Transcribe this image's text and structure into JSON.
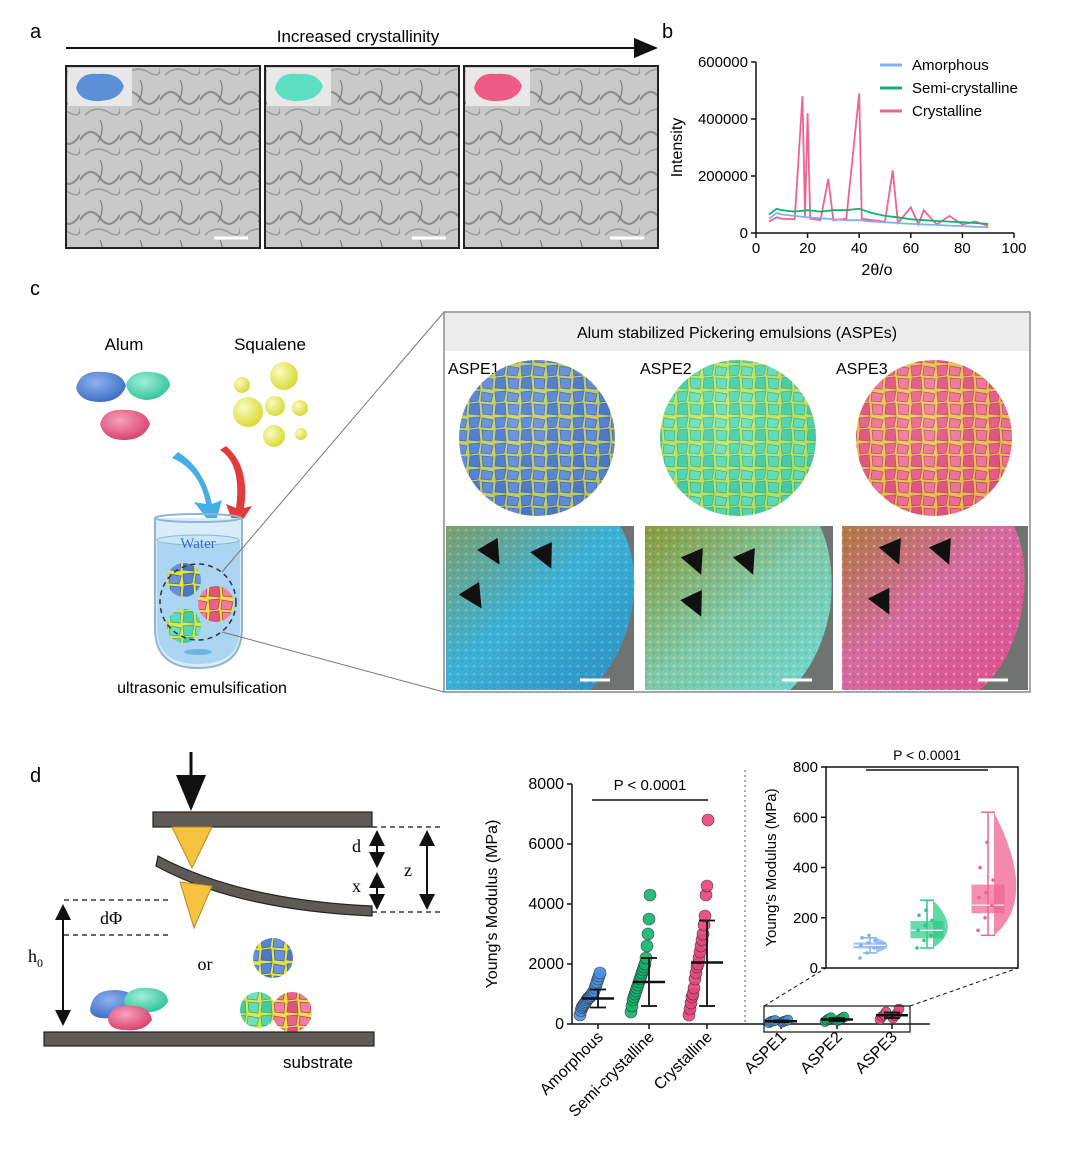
{
  "panel_labels": {
    "a": "a",
    "b": "b",
    "c": "c",
    "d": "d"
  },
  "panel_a": {
    "arrow_label": "Increased crystallinity",
    "images": [
      {
        "name": "amorphous",
        "color": "#5b8fd6"
      },
      {
        "name": "semi-crystalline",
        "color": "#5ee0c0"
      },
      {
        "name": "crystalline",
        "color": "#ee5c86"
      }
    ]
  },
  "panel_c": {
    "alum_label": "Alum",
    "squalene_label": "Squalene",
    "water_label": "Water",
    "process_label": "ultrasonic emulsification",
    "box_title": "Alum stabilized Pickering emulsions (ASPEs)",
    "aspes": [
      {
        "label": "ASPE1",
        "color": "#5b84d0"
      },
      {
        "label": "ASPE2",
        "color": "#55d6b0"
      },
      {
        "label": "ASPE3",
        "color": "#e8628a"
      }
    ]
  },
  "panel_d_schematic": {
    "d_label": "d",
    "x_label": "x",
    "z_label": "z",
    "dphi_label": "dΦ",
    "h0_label": "h",
    "h0_sub": "0",
    "or_label": "or",
    "substrate_label": "substrate"
  },
  "colors": {
    "amorphous": "#4a90e2",
    "semi": "#12b36e",
    "crystalline": "#e8437a",
    "amorphous_light": "#7fb2f0",
    "semi_light": "#2ec98a",
    "crystalline_light": "#f06292"
  },
  "chart_data": [
    {
      "type": "line",
      "panel": "b",
      "xlabel": "2θ/o",
      "ylabel": "Intensity",
      "xlim": [
        0,
        100
      ],
      "ylim": [
        0,
        600000
      ],
      "xticks": [
        "0",
        "20",
        "40",
        "60",
        "80",
        "100"
      ],
      "yticks": [
        "0",
        "200000",
        "400000",
        "600000"
      ],
      "legend": [
        "Amorphous",
        "Semi-crystalline",
        "Crystalline"
      ],
      "series": [
        {
          "name": "Amorphous",
          "x": [
            5,
            8,
            10,
            15,
            20,
            25,
            30,
            35,
            40,
            45,
            50,
            55,
            60,
            65,
            70,
            75,
            80,
            85,
            90
          ],
          "y": [
            50000,
            70000,
            65000,
            60000,
            55000,
            52000,
            48000,
            45000,
            45000,
            40000,
            38000,
            35000,
            32000,
            30000,
            28000,
            26000,
            24000,
            22000,
            20000
          ]
        },
        {
          "name": "Semi-crystalline",
          "x": [
            5,
            8,
            10,
            15,
            20,
            25,
            30,
            35,
            40,
            45,
            50,
            55,
            60,
            65,
            70,
            75,
            80,
            85,
            90
          ],
          "y": [
            65000,
            85000,
            80000,
            75000,
            80000,
            75000,
            80000,
            80000,
            85000,
            70000,
            60000,
            55000,
            48000,
            45000,
            42000,
            40000,
            38000,
            35000,
            32000
          ]
        },
        {
          "name": "Crystalline",
          "x": [
            5,
            8,
            10,
            15,
            18,
            19,
            20,
            21,
            25,
            28,
            30,
            35,
            40,
            41,
            45,
            50,
            53,
            55,
            60,
            63,
            65,
            70,
            75,
            80,
            85,
            90
          ],
          "y": [
            40000,
            55000,
            50000,
            48000,
            480000,
            60000,
            420000,
            50000,
            45000,
            190000,
            45000,
            50000,
            490000,
            50000,
            45000,
            40000,
            220000,
            35000,
            90000,
            30000,
            80000,
            30000,
            60000,
            30000,
            40000,
            25000
          ]
        }
      ]
    },
    {
      "type": "scatter",
      "panel": "d-main",
      "ylabel": "Young's Modulus (MPa)",
      "ylim": [
        0,
        8000
      ],
      "yticks": [
        "0",
        "2000",
        "4000",
        "6000",
        "8000"
      ],
      "categories": [
        "Amorphous",
        "Semi-crystalline",
        "Crystalline",
        "ASPE1",
        "ASPE2",
        "ASPE3"
      ],
      "annotation": "P < 0.0001",
      "mean": [
        850,
        1400,
        2050,
        90,
        150,
        290
      ],
      "sd_low": [
        550,
        600,
        600,
        60,
        100,
        200
      ],
      "sd_high": [
        1150,
        2200,
        3450,
        120,
        200,
        380
      ],
      "points": [
        [
          300,
          450,
          550,
          600,
          650,
          700,
          750,
          800,
          850,
          880,
          900,
          950,
          1000,
          1050,
          1100,
          1200,
          1300,
          1400,
          1500,
          1600,
          1700
        ],
        [
          400,
          600,
          800,
          900,
          1000,
          1100,
          1200,
          1300,
          1400,
          1500,
          1600,
          1700,
          1800,
          1900,
          2000,
          2200,
          2600,
          3000,
          3500,
          4300
        ],
        [
          300,
          500,
          700,
          900,
          1000,
          1200,
          1500,
          1700,
          1900,
          2000,
          2200,
          2400,
          2600,
          2800,
          3000,
          3300,
          3600,
          4300,
          4600,
          6800
        ],
        [
          40,
          60,
          80,
          90,
          100,
          110,
          120,
          130
        ],
        [
          80,
          110,
          130,
          150,
          170,
          190,
          210,
          230
        ],
        [
          150,
          200,
          250,
          280,
          300,
          350,
          400,
          500
        ]
      ]
    },
    {
      "type": "box",
      "panel": "d-inset",
      "ylabel": "Young's Modulus (MPa)",
      "ylim": [
        0,
        800
      ],
      "yticks": [
        "0",
        "200",
        "400",
        "600",
        "800"
      ],
      "categories": [
        "ASPE1",
        "ASPE2",
        "ASPE3"
      ],
      "annotation": "P < 0.0001",
      "box": [
        {
          "min": 60,
          "q1": 80,
          "median": 90,
          "q3": 100,
          "max": 120
        },
        {
          "min": 80,
          "q1": 120,
          "median": 150,
          "q3": 185,
          "max": 270
        },
        {
          "min": 130,
          "q1": 220,
          "median": 250,
          "q3": 330,
          "max": 620
        }
      ]
    }
  ]
}
